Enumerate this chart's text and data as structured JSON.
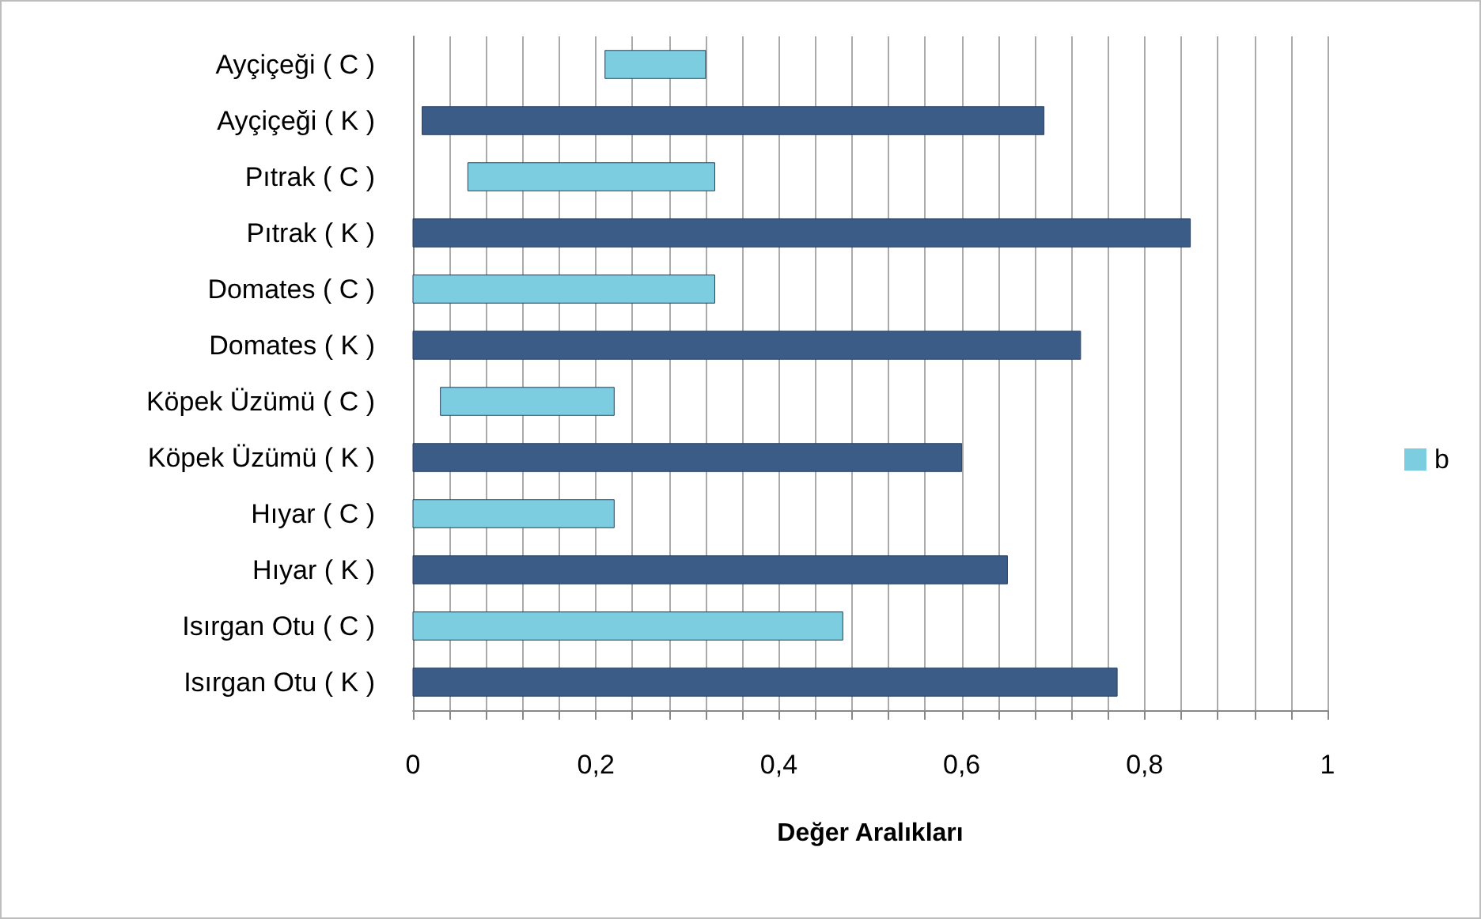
{
  "chart_data": {
    "type": "bar",
    "orientation": "horizontal",
    "xlabel": "Değer Aralıkları",
    "categories": [
      "Ayçiçeği ( C )",
      "Ayçiçeği ( K )",
      "Pıtrak ( C )",
      "Pıtrak ( K )",
      "Domates ( C )",
      "Domates ( K )",
      "Köpek Üzümü ( C )",
      "Köpek Üzümü ( K )",
      "Hıyar ( C )",
      "Hıyar ( K )",
      "Isırgan Otu ( C )",
      "Isırgan Otu ( K )"
    ],
    "series": [
      {
        "name": "b",
        "color": "#7ccde0",
        "base": [
          0.21,
          0.01,
          0.06,
          0,
          0,
          0,
          0.03,
          0,
          0,
          0,
          0,
          0
        ],
        "values": [
          0.11,
          0.68,
          0.27,
          0.85,
          0.33,
          0.73,
          0.19,
          0.6,
          0.22,
          0.65,
          0.47,
          0.77
        ],
        "colors": [
          "#7ccde0",
          "#3c5c88",
          "#7ccde0",
          "#3c5c88",
          "#7ccde0",
          "#3c5c88",
          "#7ccde0",
          "#3c5c88",
          "#7ccde0",
          "#3c5c88",
          "#7ccde0",
          "#3c5c88"
        ]
      }
    ],
    "xlim": [
      0,
      1
    ],
    "xticks": [
      {
        "value": 0,
        "label": "0"
      },
      {
        "value": 0.04,
        "label": null
      },
      {
        "value": 0.08,
        "label": null
      },
      {
        "value": 0.12,
        "label": null
      },
      {
        "value": 0.16,
        "label": null
      },
      {
        "value": 0.2,
        "label": "0,2"
      },
      {
        "value": 0.24,
        "label": null
      },
      {
        "value": 0.28,
        "label": null
      },
      {
        "value": 0.32,
        "label": null
      },
      {
        "value": 0.36,
        "label": null
      },
      {
        "value": 0.4,
        "label": "0,4"
      },
      {
        "value": 0.44,
        "label": null
      },
      {
        "value": 0.48,
        "label": null
      },
      {
        "value": 0.52,
        "label": null
      },
      {
        "value": 0.56,
        "label": null
      },
      {
        "value": 0.6,
        "label": "0,6"
      },
      {
        "value": 0.64,
        "label": null
      },
      {
        "value": 0.68,
        "label": null
      },
      {
        "value": 0.72,
        "label": null
      },
      {
        "value": 0.76,
        "label": null
      },
      {
        "value": 0.8,
        "label": "0,8"
      },
      {
        "value": 0.84,
        "label": null
      },
      {
        "value": 0.88,
        "label": null
      },
      {
        "value": 0.92,
        "label": null
      },
      {
        "value": 0.96,
        "label": null
      },
      {
        "value": 1,
        "label": "1"
      }
    ],
    "grid": "x",
    "legend": "right"
  }
}
